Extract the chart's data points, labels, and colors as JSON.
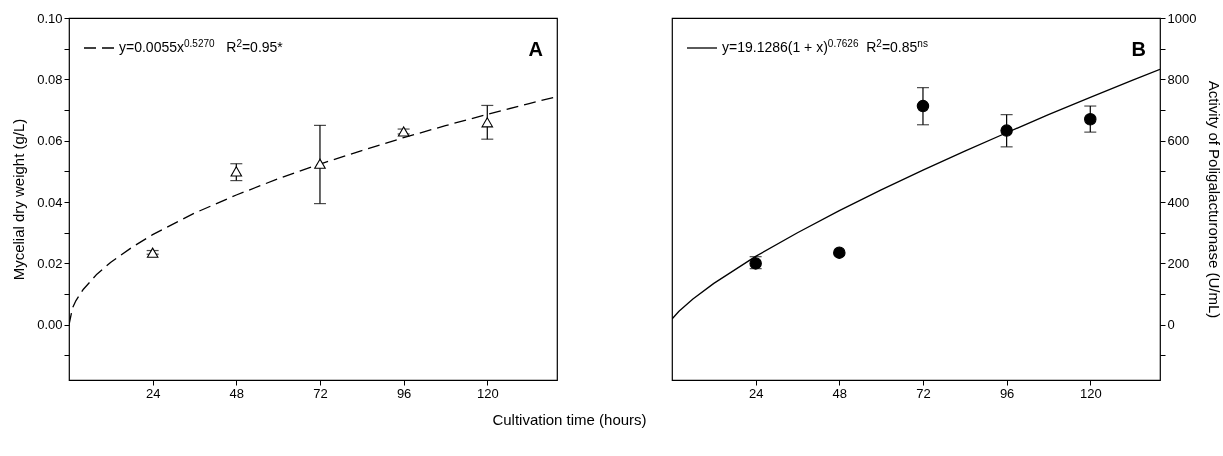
{
  "chart_data": [
    {
      "type": "scatter",
      "xlabel": "Cultivation time (hours)",
      "ylabel": "Mycelial dry weight (g/L)",
      "xlim": [
        0,
        140
      ],
      "xticks": [
        24,
        48,
        72,
        96,
        120
      ],
      "ylim": [
        -0.018,
        0.1
      ],
      "yticks": [
        {
          "value": -0.01,
          "label": null
        },
        {
          "value": 0,
          "label": "0.00"
        },
        {
          "value": 0.01,
          "label": null
        },
        {
          "value": 0.02,
          "label": "0.02"
        },
        {
          "value": 0.03,
          "label": null
        },
        {
          "value": 0.04,
          "label": "0.04"
        },
        {
          "value": 0.05,
          "label": null
        },
        {
          "value": 0.06,
          "label": "0.06"
        },
        {
          "value": 0.07,
          "label": null
        },
        {
          "value": 0.08,
          "label": "0.08"
        },
        {
          "value": 0.09,
          "label": null
        },
        {
          "value": 0.1,
          "label": "0.10"
        }
      ],
      "legend": "top left",
      "annotations": [
        "A"
      ],
      "series": [
        {
          "name": "y=0.0055x$^{0.5270}$   R$^{2}$=0.95*",
          "type": "line",
          "line_style": "dashed",
          "marker": "none",
          "color": "#000000",
          "x": [
            0,
            1,
            2,
            4,
            8,
            12,
            18,
            24,
            36,
            48,
            60,
            72,
            84,
            96,
            108,
            120,
            132,
            140
          ],
          "values": [
            0,
            0.0055,
            0.0079,
            0.0114,
            0.0165,
            0.0204,
            0.0252,
            0.0294,
            0.0364,
            0.0423,
            0.0476,
            0.0524,
            0.0568,
            0.061,
            0.0649,
            0.0686,
            0.0721,
            0.0744
          ]
        },
        {
          "marker": "triangle",
          "color": "#000000",
          "x": [
            24,
            48,
            72,
            96,
            120
          ],
          "values": [
            0.0235,
            0.05,
            0.0525,
            0.063,
            0.066
          ],
          "errors": [
            [
              0.023,
              0.0242
            ],
            [
              0.047,
              0.0525
            ],
            [
              0.0395,
              0.065
            ],
            [
              0.0622,
              0.0638
            ],
            [
              0.0605,
              0.0715
            ]
          ]
        }
      ]
    },
    {
      "type": "scatter",
      "y2label": "Activity of Poligalacturonase (U/mL)",
      "xlim": [
        0,
        140
      ],
      "xticks": [
        24,
        48,
        72,
        96,
        120
      ],
      "y2lim": [
        -180,
        1000
      ],
      "y2ticks": [
        {
          "value": -100,
          "label": null
        },
        0,
        {
          "value": 100,
          "label": null
        },
        200,
        {
          "value": 300,
          "label": null
        },
        400,
        {
          "value": 500,
          "label": null
        },
        600,
        {
          "value": 700,
          "label": null
        },
        800,
        {
          "value": 900,
          "label": null
        },
        1000
      ],
      "legend": "top left",
      "annotations": [
        "B"
      ],
      "series": [
        {
          "name": "y=19.1286(1 + x)$^{0.7626}$  R$^{2}$=0.85$^{ns}$",
          "type": "line",
          "axis": "y2",
          "line_style": "solid",
          "marker": "none",
          "color": "#000000",
          "x": [
            0,
            2,
            6,
            12,
            24,
            36,
            48,
            60,
            72,
            84,
            96,
            108,
            120,
            132,
            140
          ],
          "values": [
            19,
            44,
            84,
            135,
            223,
            300,
            372,
            440,
            504,
            566,
            626,
            685,
            741,
            797,
            833
          ]
        },
        {
          "axis": "y2",
          "marker": "circle",
          "color": "#000000",
          "x": [
            24,
            48,
            72,
            96,
            120
          ],
          "values": [
            200,
            235,
            713,
            633,
            670
          ],
          "errors": [
            [
              183,
              222
            ],
            null,
            [
              652,
              773
            ],
            [
              580,
              685
            ],
            [
              628,
              713
            ]
          ]
        }
      ]
    }
  ]
}
